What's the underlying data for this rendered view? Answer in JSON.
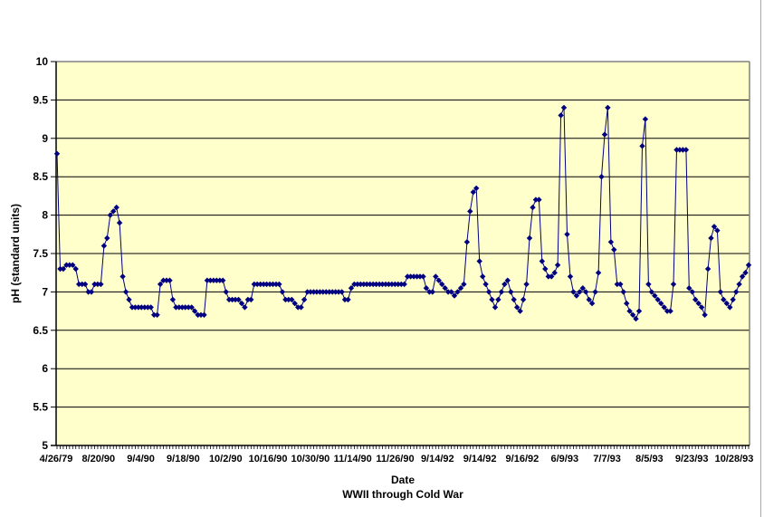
{
  "chart_data": {
    "type": "line",
    "title": "",
    "xlabel": "Date",
    "xlabel_sub": "WWII through Cold War",
    "ylabel": "pH (standard units)",
    "ylim": [
      5,
      10
    ],
    "ytick_step": 0.5,
    "grid": "horizontal-black",
    "legend": "none",
    "marker": "diamond",
    "plot_bg": "#FFFFCC",
    "ytick_labels": [
      "10",
      "9.5",
      "9",
      "8.5",
      "8",
      "7.5",
      "7",
      "6.5",
      "6",
      "5.5",
      "5"
    ],
    "xtick_labels": [
      "4/26/79",
      "8/20/90",
      "9/4/90",
      "9/18/90",
      "10/2/90",
      "10/16/90",
      "10/30/90",
      "11/14/90",
      "11/26/90",
      "9/14/92",
      "9/14/92",
      "9/16/92",
      "6/9/93",
      "7/7/93",
      "8/5/93",
      "9/23/93",
      "10/28/93"
    ],
    "series": [
      {
        "name": "pH",
        "values": [
          8.8,
          7.3,
          7.3,
          7.35,
          7.35,
          7.35,
          7.3,
          7.1,
          7.1,
          7.1,
          7.0,
          7.0,
          7.1,
          7.1,
          7.1,
          7.6,
          7.7,
          8.0,
          8.05,
          8.1,
          7.9,
          7.2,
          7.0,
          6.9,
          6.8,
          6.8,
          6.8,
          6.8,
          6.8,
          6.8,
          6.8,
          6.7,
          6.7,
          7.1,
          7.15,
          7.15,
          7.15,
          6.9,
          6.8,
          6.8,
          6.8,
          6.8,
          6.8,
          6.8,
          6.75,
          6.7,
          6.7,
          6.7,
          7.15,
          7.15,
          7.15,
          7.15,
          7.15,
          7.15,
          7.0,
          6.9,
          6.9,
          6.9,
          6.9,
          6.85,
          6.8,
          6.9,
          6.9,
          7.1,
          7.1,
          7.1,
          7.1,
          7.1,
          7.1,
          7.1,
          7.1,
          7.1,
          7.0,
          6.9,
          6.9,
          6.9,
          6.85,
          6.8,
          6.8,
          6.9,
          7.0,
          7.0,
          7.0,
          7.0,
          7.0,
          7.0,
          7.0,
          7.0,
          7.0,
          7.0,
          7.0,
          7.0,
          6.9,
          6.9,
          7.05,
          7.1,
          7.1,
          7.1,
          7.1,
          7.1,
          7.1,
          7.1,
          7.1,
          7.1,
          7.1,
          7.1,
          7.1,
          7.1,
          7.1,
          7.1,
          7.1,
          7.1,
          7.2,
          7.2,
          7.2,
          7.2,
          7.2,
          7.2,
          7.05,
          7.0,
          7.0,
          7.2,
          7.15,
          7.1,
          7.05,
          7.0,
          7.0,
          6.95,
          7.0,
          7.05,
          7.1,
          7.65,
          8.05,
          8.3,
          8.35,
          7.4,
          7.2,
          7.1,
          7.0,
          6.9,
          6.8,
          6.9,
          7.0,
          7.1,
          7.15,
          7.0,
          6.9,
          6.8,
          6.75,
          6.9,
          7.1,
          7.7,
          8.1,
          8.2,
          8.2,
          7.4,
          7.3,
          7.2,
          7.2,
          7.25,
          7.35,
          9.3,
          9.4,
          7.75,
          7.2,
          7.0,
          6.95,
          7.0,
          7.05,
          7.0,
          6.9,
          6.85,
          7.0,
          7.25,
          8.5,
          9.05,
          9.4,
          7.65,
          7.55,
          7.1,
          7.1,
          7.0,
          6.85,
          6.75,
          6.7,
          6.65,
          6.75,
          8.9,
          9.25,
          7.1,
          7.0,
          6.95,
          6.9,
          6.85,
          6.8,
          6.75,
          6.75,
          7.1,
          8.85,
          8.85,
          8.85,
          8.85,
          7.05,
          7.0,
          6.9,
          6.85,
          6.8,
          6.7,
          7.3,
          7.7,
          7.85,
          7.8,
          7.0,
          6.9,
          6.85,
          6.8,
          6.9,
          7.0,
          7.1,
          7.2,
          7.25,
          7.35
        ]
      }
    ]
  },
  "colors": {
    "series": "#000080",
    "plot_bg": "#FFFFCC",
    "gridline": "#000000",
    "axis": "#000000",
    "plot_border": "#808080",
    "frame_line": "#a9a9a9",
    "page_bg": "#FFFFFF"
  }
}
